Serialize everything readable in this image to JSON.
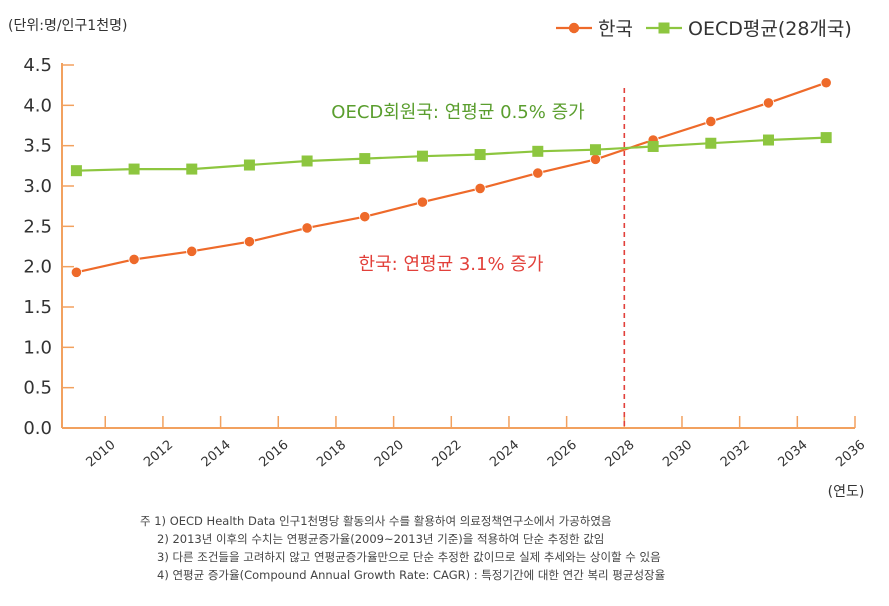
{
  "unit_label": "(단위:명/인구1천명)",
  "x_unit_label": "(연도)",
  "chart_data": {
    "type": "line",
    "x": [
      2009,
      2011,
      2013,
      2015,
      2017,
      2019,
      2021,
      2023,
      2025,
      2027,
      2029,
      2031,
      2033,
      2035
    ],
    "series": [
      {
        "name": "한국",
        "color": "#ee6a2a",
        "marker": "circle",
        "values": [
          1.93,
          2.09,
          2.19,
          2.31,
          2.48,
          2.62,
          2.8,
          2.97,
          3.16,
          3.33,
          3.57,
          3.8,
          4.03,
          4.28
        ]
      },
      {
        "name": "OECD평균(28개국)",
        "color": "#8dc63f",
        "marker": "square",
        "values": [
          3.19,
          3.21,
          3.21,
          3.26,
          3.31,
          3.34,
          3.37,
          3.39,
          3.43,
          3.45,
          3.49,
          3.53,
          3.57,
          3.6
        ]
      }
    ],
    "xticks": [
      2010,
      2012,
      2014,
      2016,
      2018,
      2020,
      2022,
      2024,
      2026,
      2028,
      2030,
      2032,
      2034,
      2036
    ],
    "yticks": [
      0.0,
      0.5,
      1.0,
      1.5,
      2.0,
      2.5,
      3.0,
      3.5,
      4.0,
      4.5
    ],
    "xlim": [
      2008.5,
      2036
    ],
    "ylim": [
      0,
      4.5
    ],
    "reference_line_x": 2028,
    "annotations": [
      {
        "text": "OECD회원국: 연평균 0.5% 증가",
        "color": "#5a9e2e"
      },
      {
        "text": "한국: 연평균 3.1% 증가",
        "color": "#e2403a"
      }
    ],
    "grid": false,
    "legend_position": "top-right"
  },
  "notes": [
    "주 1) OECD Health Data 인구1천명당 활동의사 수를 활용하여 의료정책연구소에서 가공하였음",
    "2) 2013년 이후의 수치는 연평균증가율(2009~2013년 기준)을 적용하여 단순 추정한 값임",
    "3) 다른 조건들을 고려하지 않고 연평균증가율만으로 단순 추정한 값이므로 실제 추세와는 상이할 수 있음",
    "4) 연평균 증가율(Compound Annual Growth Rate: CAGR) : 특정기간에 대한 연간 복리 평균성장율"
  ]
}
